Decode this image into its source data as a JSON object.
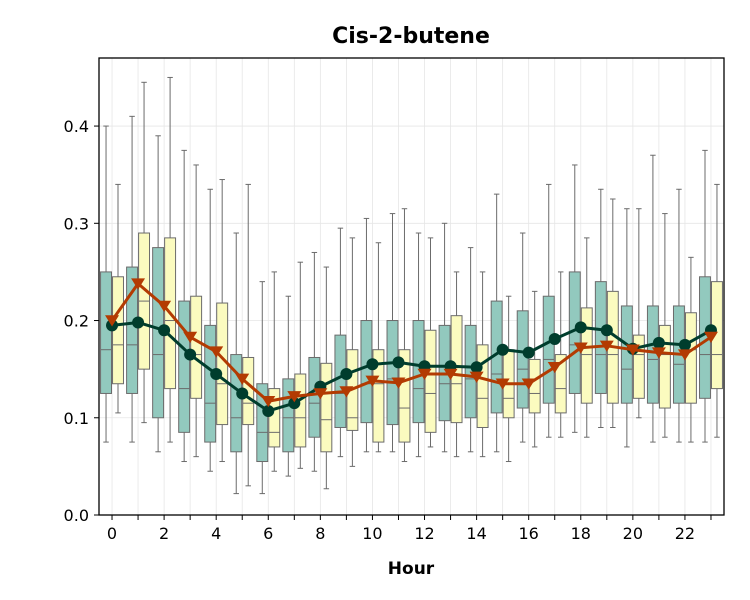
{
  "chart_data": {
    "type": "box",
    "title": "Cis-2-butene",
    "xlabel": "Hour",
    "ylabel": "",
    "xlim": [
      -0.5,
      23.5
    ],
    "ylim": [
      0.0,
      0.47
    ],
    "x_ticks": [
      0,
      2,
      4,
      6,
      8,
      10,
      12,
      14,
      16,
      18,
      20,
      22
    ],
    "y_ticks": [
      0.0,
      0.1,
      0.2,
      0.3,
      0.4
    ],
    "grid": true,
    "legend": "none",
    "colors": {
      "box_a": "#92c9be",
      "box_b": "#fbfbbf",
      "box_edge": "#6b6b6b",
      "line_a": "#003d2d",
      "line_b": "#b33b02"
    },
    "hours": [
      0,
      1,
      2,
      3,
      4,
      5,
      6,
      7,
      8,
      9,
      10,
      11,
      12,
      13,
      14,
      15,
      16,
      17,
      18,
      19,
      20,
      21,
      22,
      23
    ],
    "box_series": [
      {
        "boxes": [
          [
            0.075,
            0.125,
            0.17,
            0.25,
            0.4
          ],
          [
            0.075,
            0.125,
            0.175,
            0.255,
            0.41
          ],
          [
            0.065,
            0.1,
            0.165,
            0.275,
            0.39
          ],
          [
            0.055,
            0.085,
            0.13,
            0.22,
            0.375
          ],
          [
            0.045,
            0.075,
            0.115,
            0.195,
            0.335
          ],
          [
            0.022,
            0.065,
            0.1,
            0.165,
            0.29
          ],
          [
            0.022,
            0.055,
            0.085,
            0.135,
            0.24
          ],
          [
            0.04,
            0.065,
            0.1,
            0.14,
            0.225
          ],
          [
            0.045,
            0.08,
            0.115,
            0.162,
            0.27
          ],
          [
            0.06,
            0.09,
            0.125,
            0.185,
            0.295
          ],
          [
            0.065,
            0.095,
            0.135,
            0.2,
            0.305
          ],
          [
            0.065,
            0.093,
            0.14,
            0.2,
            0.31
          ],
          [
            0.06,
            0.095,
            0.13,
            0.2,
            0.29
          ],
          [
            0.065,
            0.097,
            0.135,
            0.195,
            0.3
          ],
          [
            0.065,
            0.1,
            0.14,
            0.195,
            0.275
          ],
          [
            0.065,
            0.105,
            0.145,
            0.22,
            0.33
          ],
          [
            0.075,
            0.11,
            0.15,
            0.21,
            0.29
          ],
          [
            0.08,
            0.115,
            0.16,
            0.225,
            0.34
          ],
          [
            0.085,
            0.125,
            0.175,
            0.25,
            0.36
          ],
          [
            0.09,
            0.125,
            0.165,
            0.24,
            0.335
          ],
          [
            0.07,
            0.115,
            0.15,
            0.215,
            0.315
          ],
          [
            0.075,
            0.115,
            0.16,
            0.215,
            0.37
          ],
          [
            0.075,
            0.115,
            0.155,
            0.215,
            0.335
          ],
          [
            0.075,
            0.12,
            0.165,
            0.245,
            0.375
          ]
        ],
        "line": [
          0.195,
          0.198,
          0.19,
          0.165,
          0.145,
          0.125,
          0.107,
          0.115,
          0.132,
          0.145,
          0.155,
          0.157,
          0.153,
          0.153,
          0.152,
          0.17,
          0.167,
          0.181,
          0.193,
          0.19,
          0.171,
          0.177,
          0.175,
          0.19
        ]
      },
      {
        "boxes": [
          [
            0.105,
            0.135,
            0.175,
            0.245,
            0.34
          ],
          [
            0.095,
            0.15,
            0.22,
            0.29,
            0.445
          ],
          [
            0.075,
            0.13,
            0.2,
            0.285,
            0.45
          ],
          [
            0.06,
            0.12,
            0.165,
            0.225,
            0.36
          ],
          [
            0.055,
            0.093,
            0.135,
            0.218,
            0.345
          ],
          [
            0.03,
            0.093,
            0.115,
            0.162,
            0.34
          ],
          [
            0.045,
            0.07,
            0.085,
            0.13,
            0.25
          ],
          [
            0.048,
            0.07,
            0.1,
            0.145,
            0.26
          ],
          [
            0.027,
            0.065,
            0.098,
            0.156,
            0.255
          ],
          [
            0.05,
            0.087,
            0.1,
            0.17,
            0.285
          ],
          [
            0.065,
            0.075,
            0.135,
            0.17,
            0.28
          ],
          [
            0.055,
            0.075,
            0.11,
            0.17,
            0.315
          ],
          [
            0.07,
            0.085,
            0.125,
            0.19,
            0.285
          ],
          [
            0.06,
            0.095,
            0.135,
            0.205,
            0.25
          ],
          [
            0.06,
            0.09,
            0.12,
            0.175,
            0.25
          ],
          [
            0.055,
            0.1,
            0.12,
            0.17,
            0.225
          ],
          [
            0.07,
            0.105,
            0.125,
            0.16,
            0.23
          ],
          [
            0.08,
            0.105,
            0.13,
            0.165,
            0.25
          ],
          [
            0.08,
            0.115,
            0.165,
            0.213,
            0.285
          ],
          [
            0.09,
            0.115,
            0.165,
            0.23,
            0.325
          ],
          [
            0.1,
            0.12,
            0.165,
            0.185,
            0.315
          ],
          [
            0.08,
            0.11,
            0.165,
            0.195,
            0.31
          ],
          [
            0.075,
            0.115,
            0.17,
            0.208,
            0.265
          ],
          [
            0.08,
            0.13,
            0.165,
            0.24,
            0.34
          ]
        ],
        "line": [
          0.2,
          0.238,
          0.215,
          0.183,
          0.168,
          0.14,
          0.117,
          0.122,
          0.125,
          0.127,
          0.138,
          0.136,
          0.145,
          0.145,
          0.142,
          0.135,
          0.135,
          0.152,
          0.172,
          0.174,
          0.17,
          0.167,
          0.165,
          0.183
        ]
      }
    ]
  }
}
